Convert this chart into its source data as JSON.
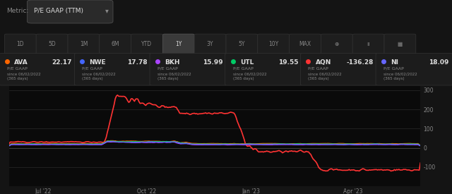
{
  "background_color": "#141414",
  "panel_color": "#1e1e1e",
  "chart_bg": "#0d0d0d",
  "grid_color": "#2a2a2a",
  "text_color": "#cccccc",
  "title_metric": "P/E GAAP (TTM)",
  "tickers": [
    {
      "name": "AVA",
      "value": "22.17",
      "color": "#ff6600"
    },
    {
      "name": "NWE",
      "value": "17.78",
      "color": "#4466ff"
    },
    {
      "name": "BKH",
      "value": "15.99",
      "color": "#aa44ff"
    },
    {
      "name": "UTL",
      "value": "19.55",
      "color": "#00cc66"
    },
    {
      "name": "AQN",
      "value": "-136.28",
      "color": "#ff3333"
    },
    {
      "name": "NI",
      "value": "18.09",
      "color": "#6666ff"
    }
  ],
  "sub_label": "P/E GAAP",
  "since_label": "since 06/02/2022",
  "days_label": "(365 days)",
  "x_labels": [
    "Jul '22",
    "Oct '22",
    "Jan '23",
    "Apr '23"
  ],
  "y_ticks": [
    -100,
    0,
    100,
    200,
    300
  ],
  "y_min": -200,
  "y_max": 320,
  "time_buttons": [
    "1D",
    "5D",
    "1M",
    "6M",
    "YTD",
    "1Y",
    "3Y",
    "5Y",
    "10Y",
    "MAX"
  ],
  "active_button": "1Y"
}
